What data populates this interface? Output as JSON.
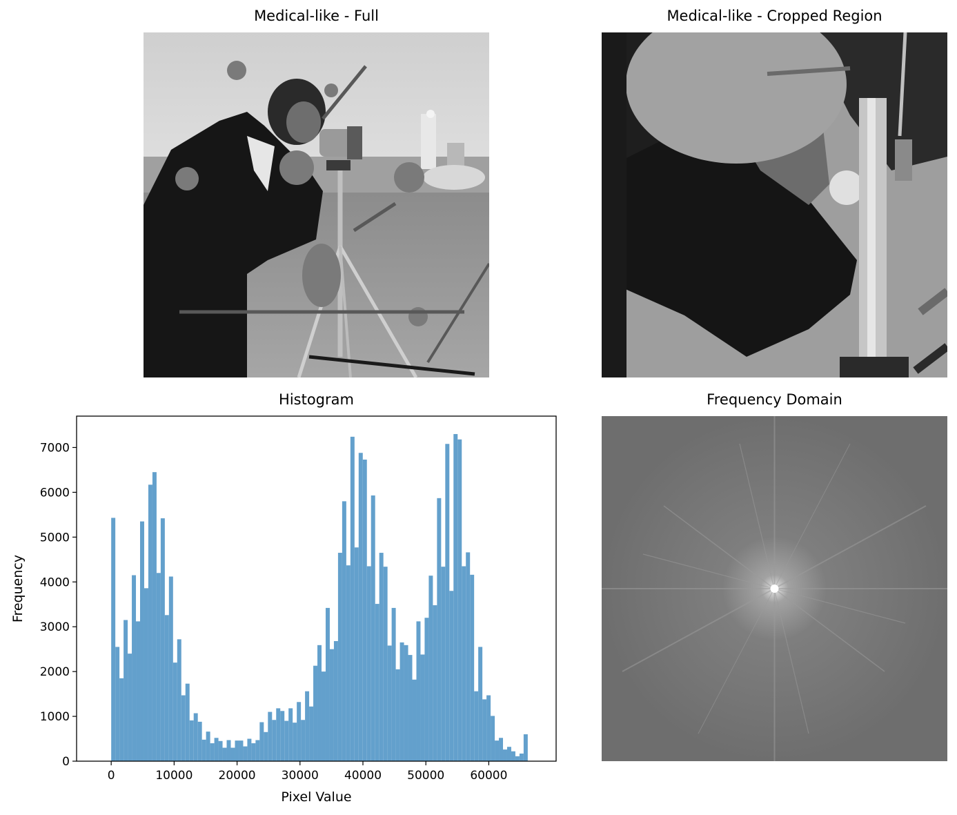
{
  "panels": {
    "full": {
      "title": "Medical-like - Full"
    },
    "crop": {
      "title": "Medical-like - Cropped Region"
    },
    "histogram": {
      "title": "Histogram"
    },
    "frequency": {
      "title": "Frequency Domain"
    }
  },
  "colors": {
    "bar": "#63a0cc"
  },
  "chart_data": {
    "type": "bar",
    "title": "Histogram",
    "xlabel": "Pixel Value",
    "ylabel": "Frequency",
    "xlim": [
      -5500,
      70700
    ],
    "ylim": [
      0,
      7700
    ],
    "xticks": [
      0,
      10000,
      20000,
      30000,
      40000,
      50000,
      60000
    ],
    "yticks": [
      0,
      1000,
      2000,
      3000,
      4000,
      5000,
      6000,
      7000
    ],
    "bin_width": 655.35,
    "bin_start": 0,
    "values": [
      5430,
      2550,
      1850,
      3150,
      2400,
      4150,
      3120,
      5350,
      3860,
      6170,
      6450,
      4200,
      5420,
      3260,
      4120,
      2200,
      2720,
      1470,
      1730,
      910,
      1070,
      880,
      480,
      660,
      400,
      520,
      450,
      300,
      470,
      300,
      460,
      460,
      330,
      500,
      400,
      470,
      870,
      650,
      1100,
      920,
      1180,
      1120,
      900,
      1180,
      860,
      1320,
      920,
      1560,
      1220,
      2130,
      2590,
      2000,
      3420,
      2500,
      2680,
      4650,
      5800,
      4370,
      7240,
      4770,
      6880,
      6730,
      4350,
      5930,
      3510,
      4650,
      4340,
      2580,
      3420,
      2050,
      2650,
      2590,
      2370,
      1820,
      3120,
      2380,
      3200,
      4140,
      3480,
      5870,
      4340,
      7080,
      3800,
      7300,
      7180,
      4350,
      4660,
      4160,
      1560,
      2550,
      1380,
      1470,
      1010,
      460,
      520,
      260,
      320,
      220,
      110,
      170,
      600
    ]
  }
}
